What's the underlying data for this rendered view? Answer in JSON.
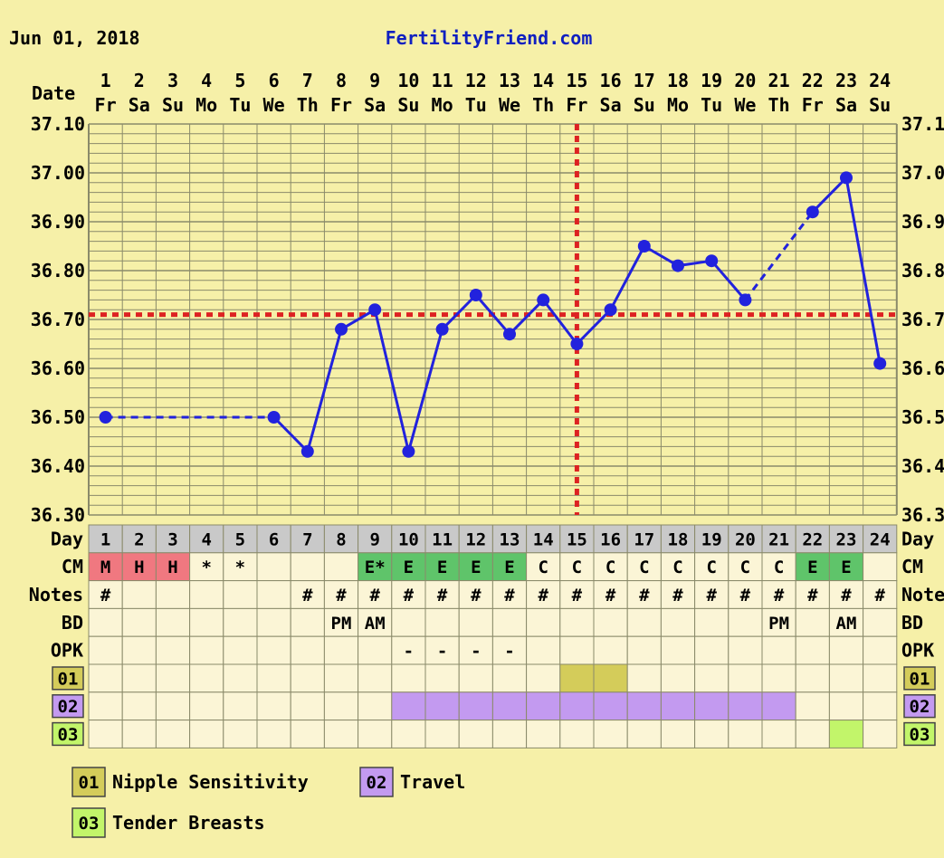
{
  "header": {
    "date": "Jun 01, 2018",
    "site": "FertilityFriend.com"
  },
  "labels": {
    "date_row": "Date",
    "day_row": "Day",
    "cm_row": "CM",
    "notes_row": "Notes",
    "notes_row_right": "Note",
    "bd_row": "BD",
    "opk_row": "OPK"
  },
  "colors": {
    "background": "#f6f0a8",
    "grid": "#8a8a6a",
    "line": "#2222dd",
    "coverline": "#dd2222",
    "day_band": "#c9c9c9",
    "cell": "#fbf5d6",
    "menses": "#f07880",
    "egg_white": "#5fc46a",
    "symptom_01": "#d4cc5a",
    "symptom_02": "#c39af0",
    "symptom_03": "#c2f56a"
  },
  "chart_data": {
    "type": "line",
    "title": "",
    "xlabel": "Day",
    "ylabel": "",
    "ylim": [
      36.3,
      37.1
    ],
    "y_ticks": [
      "36.30",
      "36.40",
      "36.50",
      "36.60",
      "36.70",
      "36.80",
      "36.90",
      "37.00",
      "37.10"
    ],
    "y_ticks_right": [
      "36.3",
      "36.4",
      "36.5",
      "36.6",
      "36.7",
      "36.8",
      "36.9",
      "37.0",
      "37.1"
    ],
    "days": [
      "1",
      "2",
      "3",
      "4",
      "5",
      "6",
      "7",
      "8",
      "9",
      "10",
      "11",
      "12",
      "13",
      "14",
      "15",
      "16",
      "17",
      "18",
      "19",
      "20",
      "21",
      "22",
      "23",
      "24"
    ],
    "weekdays": [
      "Fr",
      "Sa",
      "Su",
      "Mo",
      "Tu",
      "We",
      "Th",
      "Fr",
      "Sa",
      "Su",
      "Mo",
      "Tu",
      "We",
      "Th",
      "Fr",
      "Sa",
      "Su",
      "Mo",
      "Tu",
      "We",
      "Th",
      "Fr",
      "Sa",
      "Su"
    ],
    "temperatures": [
      36.5,
      null,
      null,
      null,
      null,
      36.5,
      36.43,
      36.68,
      36.72,
      36.43,
      36.68,
      36.75,
      36.67,
      36.74,
      36.65,
      36.72,
      36.85,
      36.81,
      36.82,
      36.74,
      null,
      36.92,
      36.99,
      36.61
    ],
    "coverline": 36.71,
    "ovulation_day": 15,
    "grid": true,
    "cm": [
      "M",
      "H",
      "H",
      "*",
      "*",
      "",
      "",
      "",
      "E*",
      "E",
      "E",
      "E",
      "E",
      "C",
      "C",
      "C",
      "C",
      "C",
      "C",
      "C",
      "C",
      "E",
      "E",
      ""
    ],
    "notes": [
      "#",
      "",
      "",
      "",
      "",
      "",
      "#",
      "#",
      "#",
      "#",
      "#",
      "#",
      "#",
      "#",
      "#",
      "#",
      "#",
      "#",
      "#",
      "#",
      "#",
      "#",
      "#",
      "#"
    ],
    "bd": [
      "",
      "",
      "",
      "",
      "",
      "",
      "",
      "PM",
      "AM",
      "",
      "",
      "",
      "",
      "",
      "",
      "",
      "",
      "",
      "",
      "",
      "PM",
      "",
      "AM",
      ""
    ],
    "opk": [
      "",
      "",
      "",
      "",
      "",
      "",
      "",
      "",
      "",
      "-",
      "-",
      "-",
      "-",
      "",
      "",
      "",
      "",
      "",
      "",
      "",
      "",
      "",
      "",
      ""
    ],
    "symptoms": [
      {
        "code": "01",
        "name": "Nipple Sensitivity",
        "days": [
          15,
          16
        ]
      },
      {
        "code": "02",
        "name": "Travel",
        "days": [
          10,
          11,
          12,
          13,
          14,
          15,
          16,
          17,
          18,
          19,
          20,
          21
        ]
      },
      {
        "code": "03",
        "name": "Tender Breasts",
        "days": [
          23
        ]
      }
    ]
  }
}
